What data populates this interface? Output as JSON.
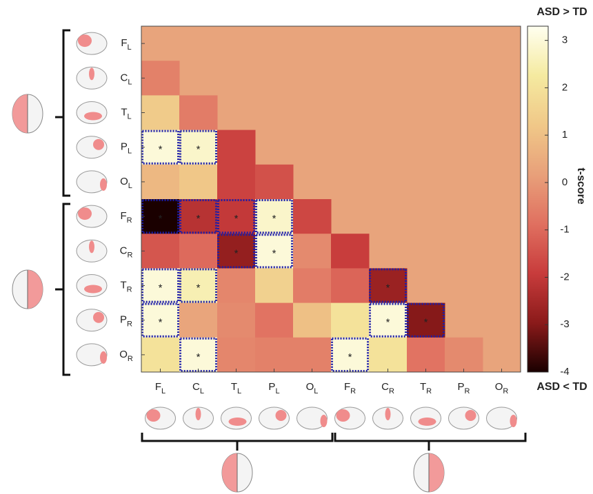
{
  "chart_data": {
    "type": "heatmap",
    "categories": [
      {
        "name": "F",
        "sub": "L"
      },
      {
        "name": "C",
        "sub": "L"
      },
      {
        "name": "T",
        "sub": "L"
      },
      {
        "name": "P",
        "sub": "L"
      },
      {
        "name": "O",
        "sub": "L"
      },
      {
        "name": "F",
        "sub": "R"
      },
      {
        "name": "C",
        "sub": "R"
      },
      {
        "name": "T",
        "sub": "R"
      },
      {
        "name": "P",
        "sub": "R"
      },
      {
        "name": "O",
        "sub": "R"
      }
    ],
    "values": [
      [
        null,
        null,
        null,
        null,
        null,
        null,
        null,
        null,
        null,
        null
      ],
      [
        -0.5,
        null,
        null,
        null,
        null,
        null,
        null,
        null,
        null,
        null
      ],
      [
        1.3,
        -0.6,
        null,
        null,
        null,
        null,
        null,
        null,
        null,
        null
      ],
      [
        3,
        2.8,
        -1.8,
        null,
        null,
        null,
        null,
        null,
        null,
        null
      ],
      [
        0.8,
        1.2,
        -1.8,
        -1.5,
        null,
        null,
        null,
        null,
        null,
        null
      ],
      [
        -4,
        -2.2,
        -2,
        2.8,
        -1.7,
        null,
        null,
        null,
        null,
        null
      ],
      [
        -1.4,
        -1,
        -2.8,
        3,
        -0.3,
        -1.9,
        null,
        null,
        null,
        null
      ],
      [
        3,
        2.5,
        -0.4,
        1.5,
        -0.6,
        -1.1,
        -2.7,
        null,
        null,
        null
      ],
      [
        3,
        0.3,
        -0.3,
        -0.8,
        1,
        2,
        3,
        -3,
        null,
        null
      ],
      [
        2,
        3,
        -0.4,
        -0.5,
        -0.5,
        3,
        2,
        -0.8,
        -0.3,
        null
      ]
    ],
    "significant": [
      [
        false,
        false,
        false,
        false,
        false,
        false,
        false,
        false,
        false,
        false
      ],
      [
        false,
        false,
        false,
        false,
        false,
        false,
        false,
        false,
        false,
        false
      ],
      [
        false,
        false,
        false,
        false,
        false,
        false,
        false,
        false,
        false,
        false
      ],
      [
        true,
        true,
        false,
        false,
        false,
        false,
        false,
        false,
        false,
        false
      ],
      [
        false,
        false,
        false,
        false,
        false,
        false,
        false,
        false,
        false,
        false
      ],
      [
        true,
        true,
        true,
        true,
        false,
        false,
        false,
        false,
        false,
        false
      ],
      [
        false,
        false,
        true,
        true,
        false,
        false,
        false,
        false,
        false,
        false
      ],
      [
        true,
        true,
        false,
        false,
        false,
        false,
        true,
        false,
        false,
        false
      ],
      [
        true,
        false,
        false,
        false,
        false,
        false,
        true,
        true,
        false,
        false
      ],
      [
        false,
        true,
        false,
        false,
        false,
        true,
        false,
        false,
        false,
        false
      ]
    ],
    "marker": "*",
    "colormap": [
      "#1a0000",
      "#8b1a1a",
      "#c83c3c",
      "#e07060",
      "#e8a07a",
      "#f0c888",
      "#f5eaa0",
      "#fffff0"
    ],
    "colorbar_label": "t-score",
    "top_label": "ASD > TD",
    "bottom_label": "ASD < TD",
    "ylim": [
      -4,
      3.3
    ],
    "yticks": [
      -4,
      -3,
      -2,
      -1,
      0,
      1,
      2,
      3
    ]
  }
}
